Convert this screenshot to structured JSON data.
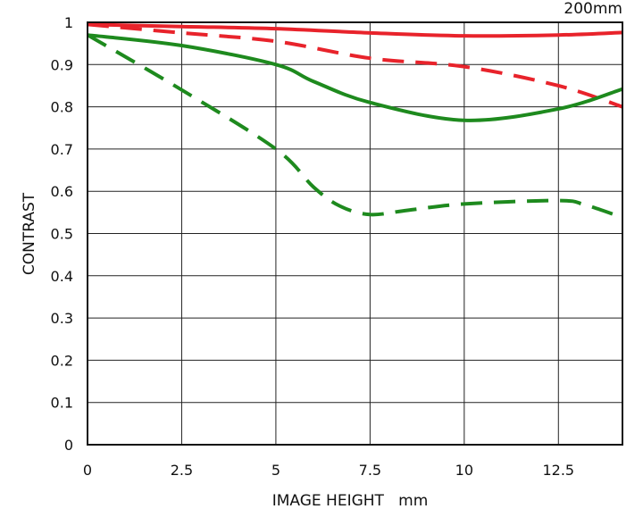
{
  "chart_data": {
    "type": "line",
    "title": "200mm",
    "xlabel": "IMAGE HEIGHT   mm",
    "ylabel": "CONTRAST",
    "xlim": [
      0,
      14.2
    ],
    "ylim": [
      0,
      1
    ],
    "grid": true,
    "xticks": [
      "0",
      "2.5",
      "5",
      "7.5",
      "10",
      "12.5"
    ],
    "xtick_values": [
      0,
      2.5,
      5,
      7.5,
      10,
      12.5
    ],
    "yticks": [
      "0",
      "0.1",
      "0.2",
      "0.3",
      "0.4",
      "0.5",
      "0.6",
      "0.7",
      "0.8",
      "0.9",
      "1"
    ],
    "ytick_values": [
      0,
      0.1,
      0.2,
      0.3,
      0.4,
      0.5,
      0.6,
      0.7,
      0.8,
      0.9,
      1
    ],
    "series": [
      {
        "name": "red-solid",
        "color": "#e8232b",
        "dash": false,
        "x": [
          0,
          2.5,
          5,
          7.5,
          10,
          12.5,
          14.2
        ],
        "y": [
          0.995,
          0.99,
          0.985,
          0.975,
          0.968,
          0.97,
          0.976
        ]
      },
      {
        "name": "red-dashed",
        "color": "#e8232b",
        "dash": true,
        "x": [
          0,
          2.5,
          5,
          7.5,
          10,
          12.5,
          14.2
        ],
        "y": [
          0.995,
          0.975,
          0.955,
          0.915,
          0.895,
          0.85,
          0.8
        ]
      },
      {
        "name": "green-solid",
        "color": "#1e8a1e",
        "dash": false,
        "x": [
          0,
          2.5,
          5,
          6,
          7.5,
          10,
          12.5,
          14.2
        ],
        "y": [
          0.97,
          0.945,
          0.9,
          0.86,
          0.81,
          0.768,
          0.795,
          0.842
        ]
      },
      {
        "name": "green-dashed",
        "color": "#1e8a1e",
        "dash": true,
        "x": [
          0,
          2.5,
          5,
          6,
          6.7,
          7.5,
          8.5,
          10,
          12.5,
          13.2,
          14.2
        ],
        "y": [
          0.97,
          0.84,
          0.7,
          0.61,
          0.565,
          0.545,
          0.555,
          0.57,
          0.578,
          0.568,
          0.538
        ]
      }
    ]
  }
}
